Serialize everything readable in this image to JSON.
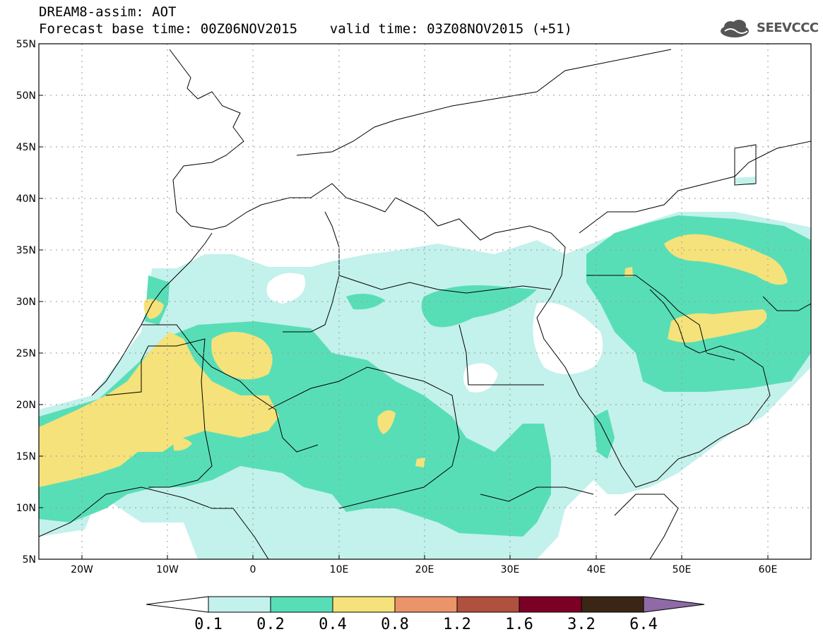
{
  "header": {
    "line1": "DREAM8-assim: AOT",
    "line2": "Forecast base time: 00Z06NOV2015    valid time: 03Z08NOV2015 (+51)"
  },
  "logo": {
    "text": "SEEVCCC",
    "icon": "cloud-logo-icon"
  },
  "map": {
    "lat_ticks": [
      "55N",
      "50N",
      "45N",
      "40N",
      "35N",
      "30N",
      "25N",
      "20N",
      "15N",
      "10N",
      "5N"
    ],
    "lon_ticks": [
      "20W",
      "10W",
      "0",
      "10E",
      "20E",
      "30E",
      "40E",
      "50E",
      "60E"
    ],
    "lat_range": [
      5,
      55
    ],
    "lon_range": [
      -25,
      65
    ],
    "grid": "dotted"
  },
  "colorbar": {
    "labels": [
      "0.1",
      "0.2",
      "0.4",
      "0.8",
      "1.2",
      "1.6",
      "3.2",
      "6.4"
    ],
    "colors": [
      "#ffffff",
      "#c3f1ec",
      "#58deb7",
      "#f5e27a",
      "#eb946a",
      "#b0503e",
      "#7c0026",
      "#3b2616",
      "#8f6aa7"
    ]
  },
  "colors": {
    "level1": "#c3f1ec",
    "level2": "#58deb7",
    "level3": "#f5e27a"
  }
}
